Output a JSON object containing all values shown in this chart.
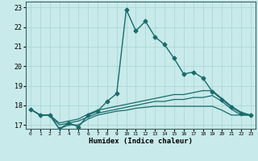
{
  "xlabel": "Humidex (Indice chaleur)",
  "ylabel": "",
  "xlim": [
    -0.5,
    23.5
  ],
  "ylim": [
    16.8,
    23.3
  ],
  "yticks": [
    17,
    18,
    19,
    20,
    21,
    22,
    23
  ],
  "xticks": [
    0,
    1,
    2,
    3,
    4,
    5,
    6,
    7,
    8,
    9,
    10,
    11,
    12,
    13,
    14,
    15,
    16,
    17,
    18,
    19,
    20,
    21,
    22,
    23
  ],
  "bg_color": "#c8eaea",
  "grid_color": "#a8d4d4",
  "line_color": "#1a6b6b",
  "series": [
    {
      "x": [
        0,
        1,
        2,
        3,
        4,
        5,
        6,
        7,
        8,
        9,
        10,
        11,
        12,
        13,
        14,
        15,
        16,
        17,
        18,
        19,
        20,
        21,
        22,
        23
      ],
      "y": [
        17.8,
        17.5,
        17.5,
        16.8,
        17.1,
        16.9,
        17.5,
        17.7,
        18.2,
        18.6,
        22.9,
        21.8,
        22.3,
        21.5,
        21.1,
        20.4,
        19.6,
        19.7,
        19.4,
        18.7,
        18.3,
        17.9,
        17.6,
        17.5
      ],
      "marker": "D",
      "markersize": 2.5,
      "linewidth": 1.0
    },
    {
      "x": [
        0,
        1,
        2,
        3,
        4,
        5,
        6,
        7,
        8,
        9,
        10,
        11,
        12,
        13,
        14,
        15,
        16,
        17,
        18,
        19,
        20,
        21,
        22,
        23
      ],
      "y": [
        17.8,
        17.5,
        17.5,
        17.1,
        17.2,
        17.3,
        17.55,
        17.75,
        17.85,
        17.95,
        18.05,
        18.15,
        18.25,
        18.35,
        18.45,
        18.55,
        18.55,
        18.65,
        18.75,
        18.75,
        18.35,
        17.95,
        17.65,
        17.5
      ],
      "marker": null,
      "markersize": 0,
      "linewidth": 0.9
    },
    {
      "x": [
        0,
        1,
        2,
        3,
        4,
        5,
        6,
        7,
        8,
        9,
        10,
        11,
        12,
        13,
        14,
        15,
        16,
        17,
        18,
        19,
        20,
        21,
        22,
        23
      ],
      "y": [
        17.8,
        17.5,
        17.5,
        17.0,
        17.1,
        17.2,
        17.4,
        17.6,
        17.7,
        17.8,
        17.9,
        18.0,
        18.1,
        18.2,
        18.2,
        18.3,
        18.3,
        18.4,
        18.4,
        18.5,
        18.2,
        17.8,
        17.5,
        17.5
      ],
      "marker": null,
      "markersize": 0,
      "linewidth": 0.9
    },
    {
      "x": [
        0,
        1,
        2,
        3,
        4,
        5,
        6,
        7,
        8,
        9,
        10,
        11,
        12,
        13,
        14,
        15,
        16,
        17,
        18,
        19,
        20,
        21,
        22,
        23
      ],
      "y": [
        17.8,
        17.5,
        17.5,
        16.8,
        17.0,
        17.0,
        17.3,
        17.5,
        17.6,
        17.7,
        17.75,
        17.85,
        17.9,
        17.95,
        17.95,
        17.95,
        17.95,
        17.95,
        17.95,
        17.95,
        17.75,
        17.5,
        17.5,
        17.5
      ],
      "marker": null,
      "markersize": 0,
      "linewidth": 0.9
    }
  ]
}
